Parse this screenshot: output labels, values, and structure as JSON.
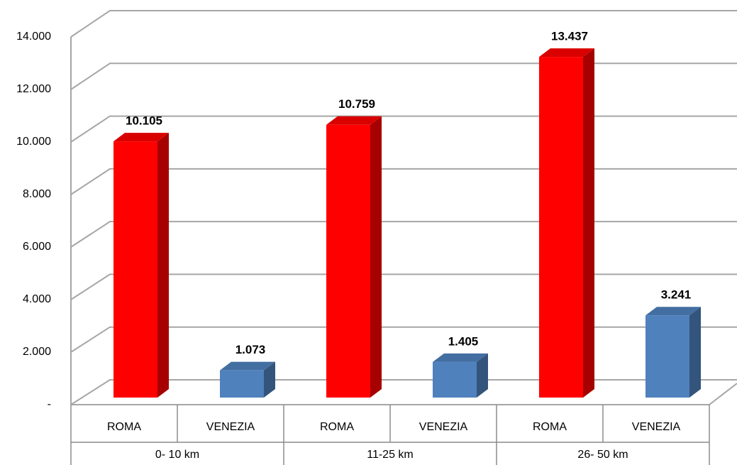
{
  "chart_data": {
    "type": "bar",
    "categories": [
      "ROMA",
      "VENEZIA",
      "ROMA",
      "VENEZIA",
      "ROMA",
      "VENEZIA"
    ],
    "groups": [
      "0- 10 km",
      "11-25 km",
      "26- 50 km"
    ],
    "values": [
      10105,
      1073,
      10759,
      1405,
      13437,
      3241
    ],
    "value_labels": [
      "10.105",
      "1.073",
      "10.759",
      "1.405",
      "13.437",
      "3.241"
    ],
    "colors": [
      "#ff0000",
      "#4f81bd",
      "#ff0000",
      "#4f81bd",
      "#ff0000",
      "#4f81bd"
    ],
    "ylim": [
      0,
      14000
    ],
    "yticks": [
      {
        "value": 0,
        "label": "-"
      },
      {
        "value": 2000,
        "label": "2.000"
      },
      {
        "value": 4000,
        "label": "4.000"
      },
      {
        "value": 6000,
        "label": "6.000"
      },
      {
        "value": 8000,
        "label": "8.000"
      },
      {
        "value": 10000,
        "label": "10.000"
      },
      {
        "value": 12000,
        "label": "12.000"
      },
      {
        "value": 14000,
        "label": "14.000"
      }
    ],
    "grid": true
  }
}
